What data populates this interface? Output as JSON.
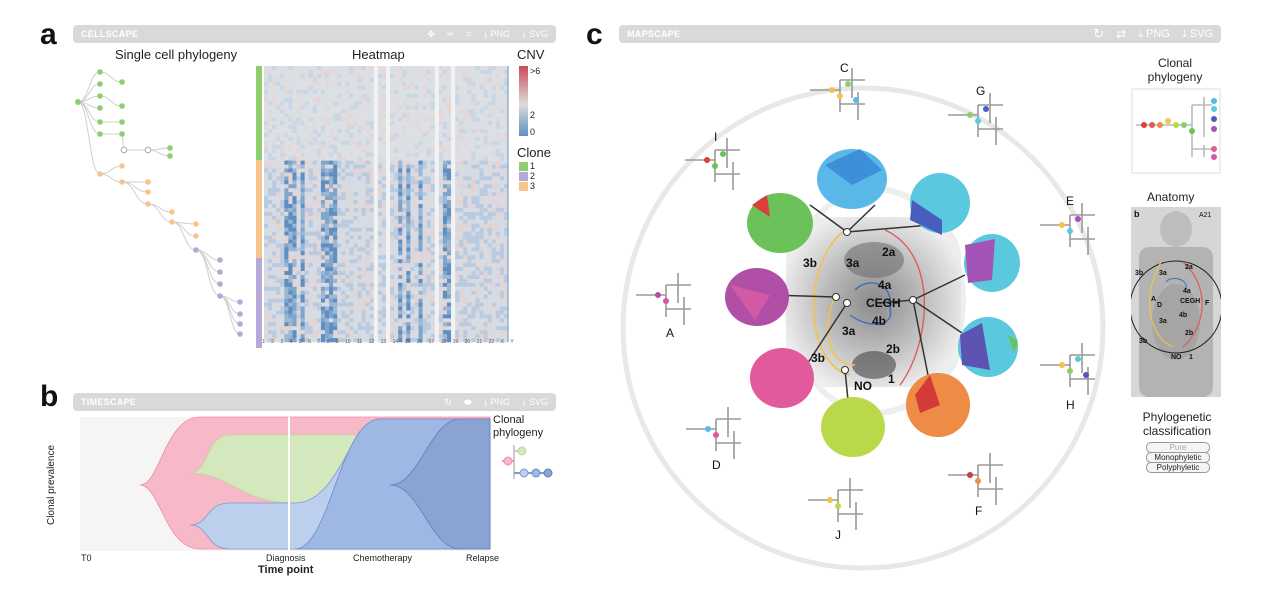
{
  "panels": {
    "a": {
      "letter": "a",
      "toolbar_name": "CELLSCAPE",
      "png_label": "PNG",
      "svg_label": "SVG",
      "tree_title": "Single cell phylogeny",
      "heatmap_title": "Heatmap",
      "cnv_title": "CNV",
      "cnv_ticks": [
        ">6",
        "2",
        "0"
      ],
      "clone_title": "Clone",
      "clone_labels": [
        "1",
        "2",
        "3"
      ],
      "clone_colors": [
        "#8fce6f",
        "#b4a9d9",
        "#f7c48c"
      ],
      "chrom_labels": [
        "1",
        "2",
        "3",
        "4",
        "5",
        "6",
        "7",
        "8",
        "9",
        "10",
        "11",
        "12",
        "13",
        "14",
        "15",
        "16",
        "17",
        "18",
        "19",
        "20",
        "21",
        "22",
        "X",
        "Y"
      ]
    },
    "b": {
      "letter": "b",
      "toolbar_name": "TIMESCAPE",
      "png_label": "PNG",
      "svg_label": "SVG",
      "ylabel": "Clonal prevalence",
      "xlabel": "Time point",
      "timepoints": [
        "T0",
        "Diagnosis",
        "Chemotherapy",
        "Relapse"
      ],
      "phylo_title": "Clonal\nphylogeny",
      "colors": {
        "pink": "#f7b9c8",
        "green": "#d4e8bd",
        "lightblue": "#bcd0ee",
        "blue": "#9fb7e3",
        "darkblue": "#8ba3d0"
      }
    },
    "c": {
      "letter": "c",
      "toolbar_name": "MAPSCAPE",
      "png_label": "PNG",
      "svg_label": "SVG",
      "sample_labels": [
        "C",
        "G",
        "I",
        "E",
        "A",
        "D",
        "H",
        "J",
        "F"
      ],
      "region_labels": [
        "2a",
        "3b",
        "3a",
        "4a",
        "CEGH",
        "4b",
        "3a",
        "3b",
        "2b",
        "NO",
        "1"
      ],
      "side_phylo_title": "Clonal\nphylogeny",
      "anatomy_title": "Anatomy",
      "anatomy_letter": "b",
      "anatomy_id": "A21",
      "anatomy_labels": [
        "3b",
        "3a",
        "2a",
        "4a",
        "A",
        "D",
        "CEGH",
        "F",
        "3a",
        "4b",
        "2b",
        "3b",
        "NO",
        "1"
      ],
      "classification_title": "Phylogenetic\nclassification",
      "classification_options": [
        "Pure",
        "Monophyletic",
        "Polyphyletic"
      ]
    }
  }
}
